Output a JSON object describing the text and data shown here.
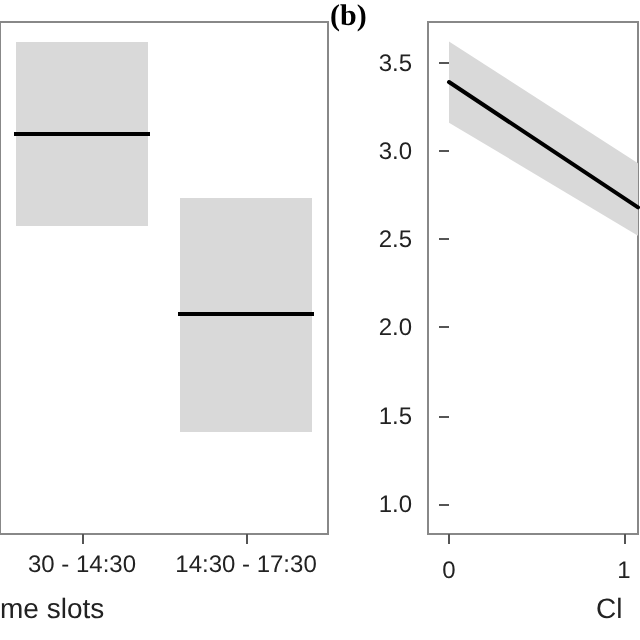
{
  "chart_data": [
    {
      "type": "other",
      "xlabel": "me slots",
      "categories": [
        "30 - 14:30",
        "14:30 - 17:30"
      ]
    },
    {
      "type": "line",
      "title": "(b)",
      "xlabel": "Cl",
      "xlim": [
        -0.12,
        1.08
      ],
      "ylim": [
        0.83,
        3.73
      ],
      "xticks": [
        0,
        1
      ],
      "yticks": [
        {
          "value": 1,
          "label": "1.0"
        },
        1.5,
        {
          "value": 2,
          "label": "2.0"
        },
        2.5,
        {
          "value": 3,
          "label": "3.0"
        },
        3.5
      ],
      "grid": false,
      "marker": "none",
      "series": [
        {
          "color": "#000000",
          "x": [
            0,
            1.08
          ],
          "values": [
            3.39,
            2.68
          ],
          "lower": [
            3.16,
            2.52
          ],
          "upper": [
            3.62,
            2.93
          ]
        }
      ]
    }
  ]
}
